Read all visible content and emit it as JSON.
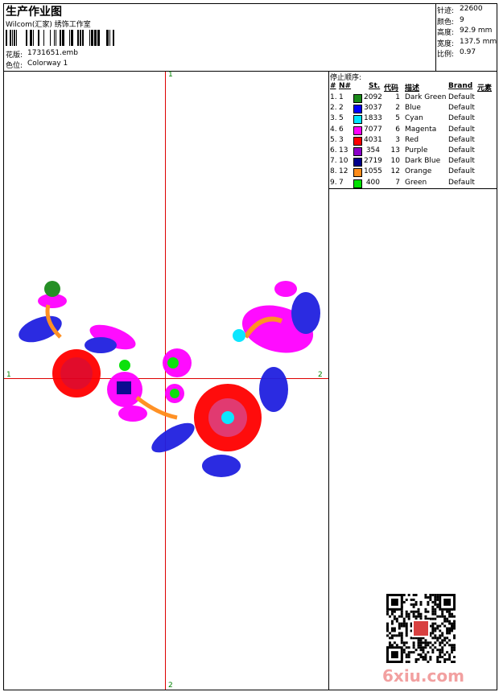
{
  "header": {
    "title": "生产作业图",
    "studio": "Wilcom(汇家) 绣饰工作室",
    "design_label": "花版:",
    "design": "1731651.emb",
    "colorway_label": "色位:",
    "colorway": "Colorway 1"
  },
  "stats": [
    {
      "label": "针迹:",
      "value": "22600"
    },
    {
      "label": "颜色:",
      "value": "9"
    },
    {
      "label": "高度:",
      "value": "92.9 mm"
    },
    {
      "label": "宽度:",
      "value": "137.5 mm"
    },
    {
      "label": "比例:",
      "value": "0.97"
    }
  ],
  "crosshair": {
    "top": "1",
    "bottom": "2",
    "left": "1",
    "right": "2"
  },
  "stop_sequence": {
    "title": "停止顺序:",
    "columns": [
      "#",
      "N#",
      "St.",
      "代码",
      "描述",
      "Brand",
      "元素"
    ],
    "rows": [
      {
        "index": "1.",
        "needle": "1",
        "color": "#1a8a1a",
        "stitches": "2092",
        "code": "1",
        "description": "Dark Green",
        "brand": "Default"
      },
      {
        "index": "2.",
        "needle": "2",
        "color": "#0000ff",
        "stitches": "3037",
        "code": "2",
        "description": "Blue",
        "brand": "Default"
      },
      {
        "index": "3.",
        "needle": "5",
        "color": "#00e5ff",
        "stitches": "1833",
        "code": "5",
        "description": "Cyan",
        "brand": "Default"
      },
      {
        "index": "4.",
        "needle": "6",
        "color": "#ff00ff",
        "stitches": "7077",
        "code": "6",
        "description": "Magenta",
        "brand": "Default"
      },
      {
        "index": "5.",
        "needle": "3",
        "color": "#ff0000",
        "stitches": "4031",
        "code": "3",
        "description": "Red",
        "brand": "Default"
      },
      {
        "index": "6.",
        "needle": "13",
        "color": "#8a00c8",
        "stitches": "354",
        "code": "13",
        "description": "Purple",
        "brand": "Default"
      },
      {
        "index": "7.",
        "needle": "10",
        "color": "#00008b",
        "stitches": "2719",
        "code": "10",
        "description": "Dark Blue",
        "brand": "Default"
      },
      {
        "index": "8.",
        "needle": "12",
        "color": "#ff8c1a",
        "stitches": "1055",
        "code": "12",
        "description": "Orange",
        "brand": "Default"
      },
      {
        "index": "9.",
        "needle": "7",
        "color": "#00e000",
        "stitches": "400",
        "code": "7",
        "description": "Green",
        "brand": "Default"
      }
    ]
  },
  "watermark": "6xiu.com"
}
